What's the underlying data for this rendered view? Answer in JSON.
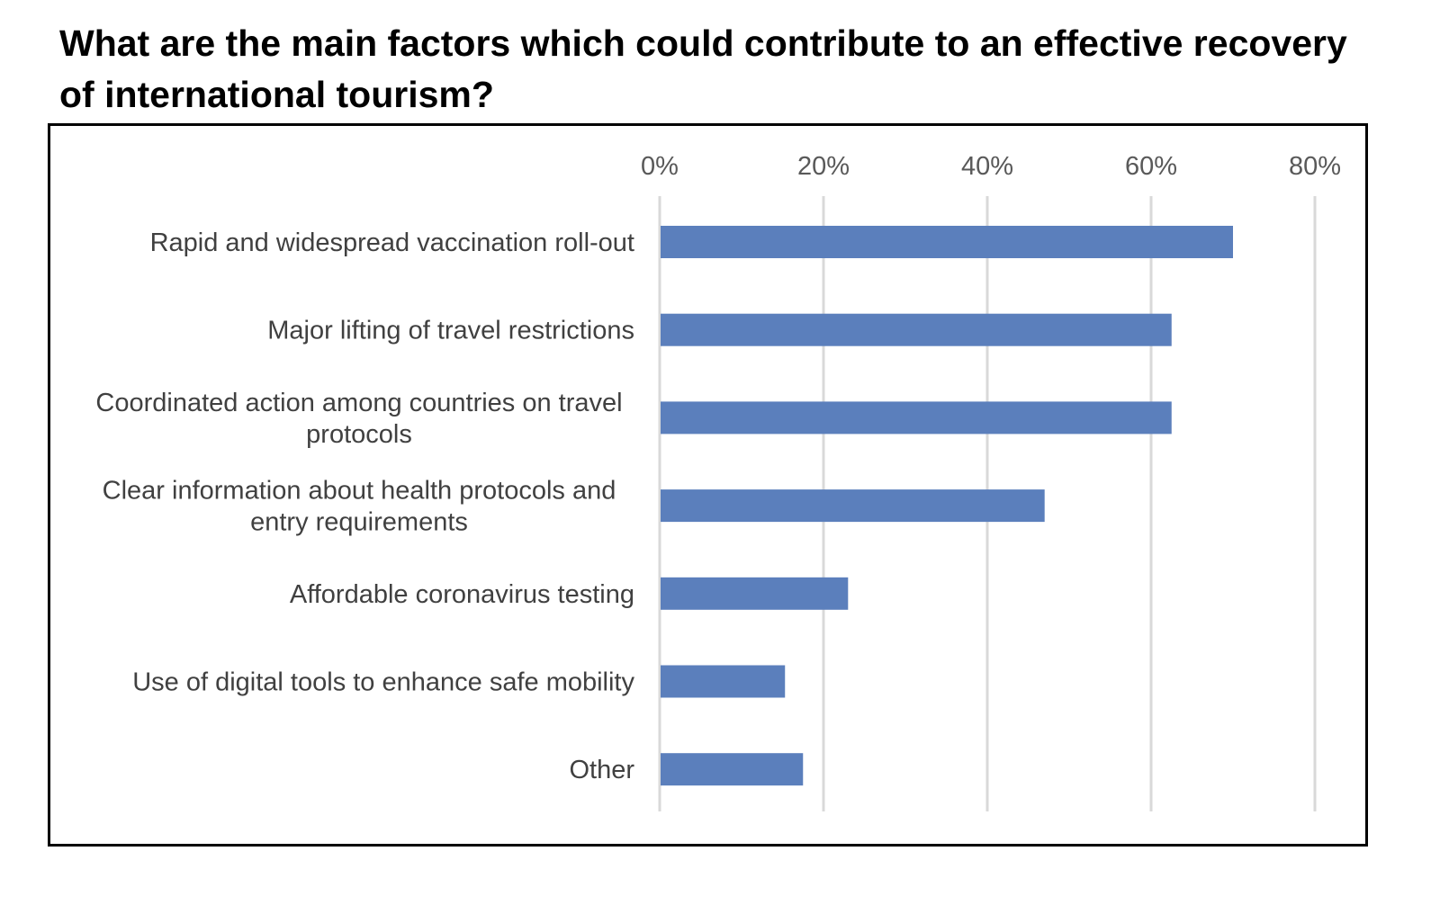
{
  "title": "What are the main factors which could contribute to an effective recovery of international tourism?",
  "colors": {
    "bar": "#5b7fbc",
    "grid": "#d9d9d9",
    "label": "#404040",
    "tick": "#595959",
    "frame": "#000000"
  },
  "chart_data": {
    "type": "bar",
    "orientation": "horizontal",
    "title": "What are the main factors which could contribute to an effective recovery of international tourism?",
    "xlabel": "",
    "ylabel": "",
    "xlim": [
      0,
      80
    ],
    "axis_position": "top",
    "grid": true,
    "legend": "none",
    "tick_labels": [
      "0%",
      "20%",
      "40%",
      "60%",
      "80%"
    ],
    "tick_values": [
      0,
      20,
      40,
      60,
      80
    ],
    "categories": [
      "Rapid and widespread vaccination roll-out",
      "Major lifting of travel restrictions",
      "Coordinated action among countries on travel protocols",
      "Clear information about health protocols and entry requirements",
      "Affordable coronavirus testing",
      "Use of digital tools to enhance safe mobility",
      "Other"
    ],
    "category_lines": [
      [
        "Rapid and widespread vaccination roll-out"
      ],
      [
        "Major lifting of travel restrictions"
      ],
      [
        "Coordinated action among countries on travel",
        "protocols"
      ],
      [
        "Clear information about health protocols and",
        "entry requirements"
      ],
      [
        "Affordable coronavirus testing"
      ],
      [
        "Use of digital tools to enhance safe mobility"
      ],
      [
        "Other"
      ]
    ],
    "values": [
      70,
      62.5,
      62.5,
      47,
      23,
      15.3,
      17.5
    ]
  }
}
